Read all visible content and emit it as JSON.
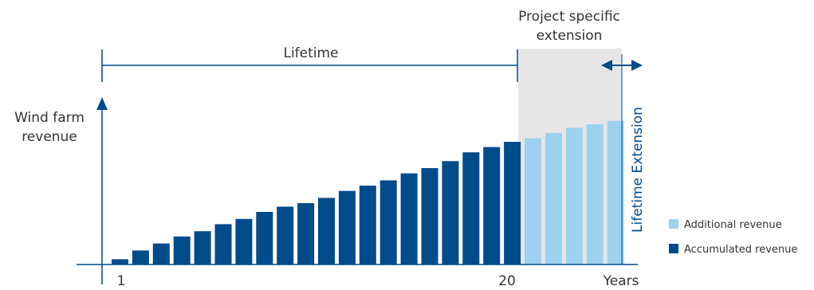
{
  "chart_data": {
    "type": "bar",
    "title": "",
    "ylabel_line1": "Wind farm",
    "ylabel_line2": "revenue",
    "xlabel": "Years",
    "tick_first": "1",
    "tick_lifetime_end": "20",
    "lifetime_label": "Lifetime",
    "extension_label_line1": "Project specific",
    "extension_label_line2": "extension",
    "vertical_label": "Lifetime Extension",
    "x": [
      1,
      2,
      3,
      4,
      5,
      6,
      7,
      8,
      9,
      10,
      11,
      12,
      13,
      14,
      15,
      16,
      17,
      18,
      19,
      20,
      21,
      22,
      23,
      24,
      25
    ],
    "values": [
      3,
      8,
      12,
      16,
      19,
      23,
      26,
      30,
      33,
      35,
      38,
      42,
      45,
      48,
      52,
      55,
      59,
      64,
      67,
      70,
      72,
      75,
      78,
      80,
      82
    ],
    "ylim": [
      0,
      100
    ],
    "series": [
      {
        "name": "Accumulated revenue",
        "years": [
          1,
          20
        ],
        "color": "#004b8a"
      },
      {
        "name": "Additional revenue",
        "years": [
          21,
          25
        ],
        "color": "#9dd1ef"
      }
    ],
    "legend_position": "bottom-right",
    "extension_band_color": "#e6e6e6",
    "axis_color": "#004b8a"
  }
}
